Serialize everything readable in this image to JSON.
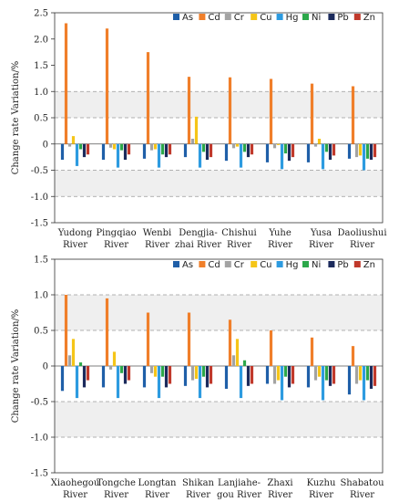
{
  "chart_data": [
    {
      "type": "bar",
      "ylabel": "Change rate Variation/%",
      "ylim": [
        -1.5,
        2.5
      ],
      "yticks": [
        -1.5,
        -1.0,
        -0.5,
        0,
        0.5,
        1.0,
        1.5,
        2.0,
        2.5
      ],
      "bands": [
        [
          0.5,
          1.0
        ],
        [
          -1.0,
          -0.5
        ]
      ],
      "dashed_lines": [
        1.0,
        0.5,
        -0.5,
        -1.0
      ],
      "legend_placement": "top-right",
      "categories": [
        [
          "Yudong",
          "River"
        ],
        [
          "Pingqiao",
          "River"
        ],
        [
          "Wenbi",
          "River"
        ],
        [
          "Dengjia-",
          "zhai River"
        ],
        [
          "Chishui",
          "River"
        ],
        [
          "Yuhe",
          "River"
        ],
        [
          "Yusa",
          "River"
        ],
        [
          "Daoliushui",
          "River"
        ]
      ],
      "series": [
        {
          "name": "As",
          "color": "#1f5fa8",
          "values": [
            -0.3,
            -0.3,
            -0.28,
            -0.25,
            -0.32,
            -0.35,
            -0.35,
            -0.28
          ]
        },
        {
          "name": "Cd",
          "color": "#f07f2a",
          "values": [
            2.3,
            2.2,
            1.75,
            1.28,
            1.27,
            1.24,
            1.15,
            1.1
          ]
        },
        {
          "name": "Cr",
          "color": "#a3a3a3",
          "values": [
            -0.05,
            -0.07,
            -0.12,
            0.1,
            -0.08,
            -0.08,
            -0.05,
            -0.25
          ]
        },
        {
          "name": "Cu",
          "color": "#f5c518",
          "values": [
            0.15,
            -0.1,
            -0.1,
            0.52,
            -0.05,
            -0.02,
            0.1,
            -0.22
          ]
        },
        {
          "name": "Hg",
          "color": "#2d9be0",
          "values": [
            -0.42,
            -0.45,
            -0.45,
            -0.45,
            -0.45,
            -0.48,
            -0.48,
            -0.5
          ]
        },
        {
          "name": "Ni",
          "color": "#2ca84a",
          "values": [
            -0.1,
            -0.12,
            -0.2,
            -0.15,
            -0.15,
            -0.18,
            -0.15,
            -0.28
          ]
        },
        {
          "name": "Pb",
          "color": "#1b2a5c",
          "values": [
            -0.25,
            -0.3,
            -0.25,
            -0.3,
            -0.25,
            -0.32,
            -0.3,
            -0.3
          ]
        },
        {
          "name": "Zn",
          "color": "#c0392b",
          "values": [
            -0.2,
            -0.2,
            -0.2,
            -0.25,
            -0.2,
            -0.25,
            -0.22,
            -0.25
          ]
        }
      ]
    },
    {
      "type": "bar",
      "ylabel": "Change rate Variation/%",
      "ylim": [
        -1.5,
        1.5
      ],
      "yticks": [
        -1.5,
        -1.0,
        -0.5,
        0,
        0.5,
        1.0,
        1.5
      ],
      "bands": [
        [
          0.5,
          1.0
        ],
        [
          -1.0,
          -0.5
        ]
      ],
      "dashed_lines": [
        1.0,
        0.5,
        -0.5,
        -1.0
      ],
      "legend_placement": "top-right",
      "categories": [
        [
          "Xiaohegou",
          "River"
        ],
        [
          "Tongche",
          "River"
        ],
        [
          "Longtan",
          "River"
        ],
        [
          "Shikan",
          "River"
        ],
        [
          "Lanjiahe-",
          "gou River"
        ],
        [
          "Zhaxi",
          "River"
        ],
        [
          "Kuzhu",
          "River"
        ],
        [
          "Shabatou",
          "River"
        ]
      ],
      "series": [
        {
          "name": "As",
          "color": "#1f5fa8",
          "values": [
            -0.35,
            -0.3,
            -0.3,
            -0.28,
            -0.32,
            -0.25,
            -0.3,
            -0.4
          ]
        },
        {
          "name": "Cd",
          "color": "#f07f2a",
          "values": [
            1.0,
            0.95,
            0.75,
            0.75,
            0.65,
            0.5,
            0.4,
            0.28
          ]
        },
        {
          "name": "Cr",
          "color": "#a3a3a3",
          "values": [
            0.15,
            -0.05,
            -0.1,
            -0.2,
            0.15,
            -0.25,
            -0.2,
            -0.25
          ]
        },
        {
          "name": "Cu",
          "color": "#f5c518",
          "values": [
            0.38,
            0.2,
            -0.15,
            -0.18,
            0.38,
            -0.2,
            -0.15,
            -0.2
          ]
        },
        {
          "name": "Hg",
          "color": "#2d9be0",
          "values": [
            -0.45,
            -0.45,
            -0.45,
            -0.45,
            -0.45,
            -0.48,
            -0.48,
            -0.48
          ]
        },
        {
          "name": "Ni",
          "color": "#2ca84a",
          "values": [
            0.05,
            -0.1,
            -0.15,
            -0.15,
            0.08,
            -0.15,
            -0.2,
            -0.2
          ]
        },
        {
          "name": "Pb",
          "color": "#1b2a5c",
          "values": [
            -0.3,
            -0.25,
            -0.3,
            -0.3,
            -0.28,
            -0.3,
            -0.28,
            -0.32
          ]
        },
        {
          "name": "Zn",
          "color": "#c0392b",
          "values": [
            -0.2,
            -0.2,
            -0.25,
            -0.25,
            -0.25,
            -0.25,
            -0.25,
            -0.28
          ]
        }
      ]
    }
  ]
}
